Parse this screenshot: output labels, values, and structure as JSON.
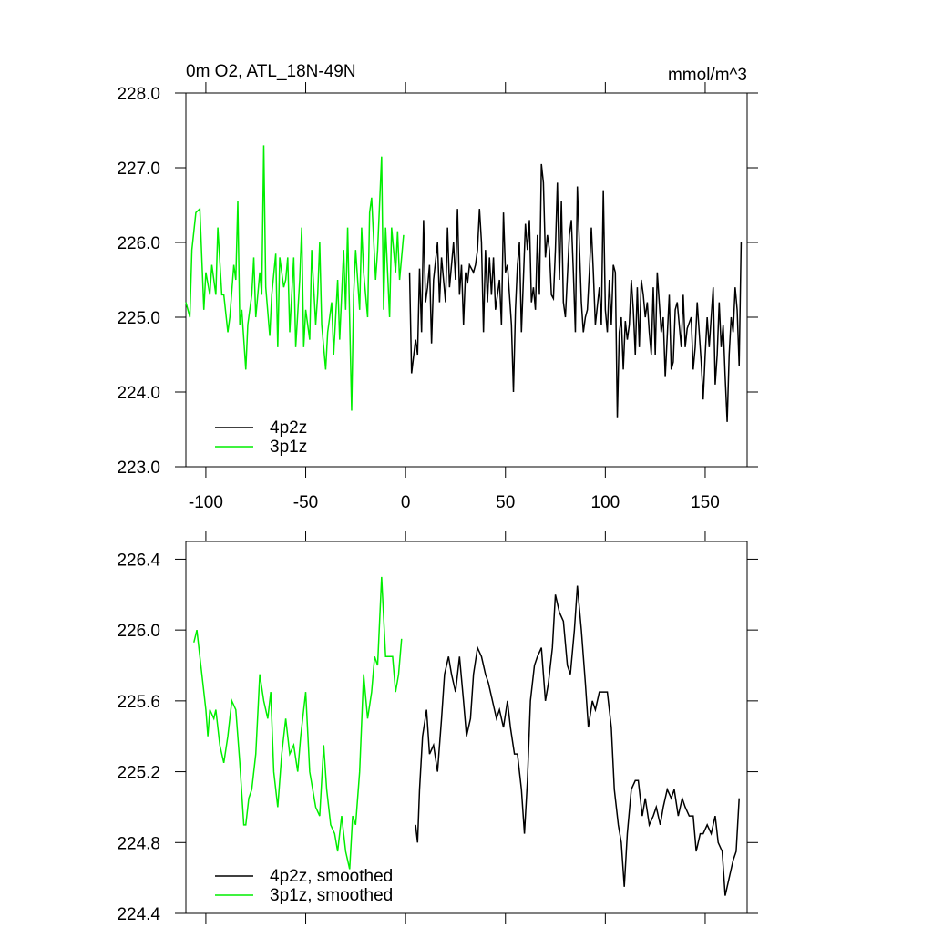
{
  "chart_data": [
    {
      "type": "line",
      "title": "0m O2, ATL_18N-49N",
      "units": "mmol/m^3",
      "xlim": [
        -110,
        171
      ],
      "xticks": [
        -100,
        -50,
        0,
        50,
        100,
        150
      ],
      "show_xtick_labels": true,
      "ylim": [
        223,
        228
      ],
      "yticks": [
        {
          "value": 223,
          "label": "223.0"
        },
        {
          "value": 224,
          "label": "224.0"
        },
        {
          "value": 225,
          "label": "225.0"
        },
        {
          "value": 226,
          "label": "226.0"
        },
        {
          "value": 227,
          "label": "227.0"
        },
        {
          "value": 228,
          "label": "228.0"
        }
      ],
      "legend": "lower left",
      "series": [
        {
          "name": "4p2z",
          "color": "#000000",
          "x": [
            2,
            3,
            5,
            6,
            7,
            8,
            9,
            10,
            11,
            12,
            13,
            14,
            16,
            17,
            18,
            20,
            21,
            22,
            24,
            25,
            26,
            27,
            28,
            29,
            30,
            31,
            32,
            34,
            35,
            36,
            37,
            38,
            39,
            40,
            41,
            42,
            43,
            44,
            45,
            47,
            48,
            49,
            50,
            51,
            53,
            54,
            55,
            56,
            57,
            58,
            60,
            61,
            62,
            63,
            64,
            65,
            66,
            67,
            68,
            69,
            70,
            71,
            72,
            73,
            74,
            75,
            76,
            77,
            78,
            79,
            80,
            82,
            83,
            84,
            85,
            86,
            88,
            89,
            90,
            91,
            92,
            93,
            94,
            95,
            97,
            98,
            99,
            100,
            101,
            102,
            103,
            104,
            105,
            106,
            107,
            108,
            109,
            110,
            111,
            112,
            113,
            114,
            115,
            116,
            117,
            118,
            119,
            120,
            121,
            122,
            123,
            124,
            125,
            126,
            128,
            129,
            130,
            132,
            133,
            134,
            135,
            136,
            138,
            139,
            140,
            141,
            143,
            144,
            145,
            146,
            148,
            149,
            150,
            151,
            152,
            154,
            155,
            156,
            157,
            158,
            159,
            160,
            161,
            162,
            163,
            164,
            165,
            166,
            167,
            168
          ],
          "values": [
            225.6,
            224.25,
            224.7,
            224.5,
            225.65,
            224.8,
            226.3,
            225.2,
            225.4,
            225.7,
            224.65,
            225.5,
            226.0,
            225.2,
            225.8,
            225.2,
            226.2,
            225.4,
            226.0,
            225.5,
            226.45,
            225.3,
            225.7,
            224.9,
            225.6,
            225.45,
            225.7,
            225.6,
            225.7,
            225.9,
            226.45,
            226.0,
            224.8,
            225.9,
            225.2,
            225.8,
            225.3,
            225.8,
            225.1,
            225.5,
            224.9,
            226.4,
            225.6,
            225.7,
            224.9,
            224.0,
            225.1,
            225.7,
            226.0,
            224.8,
            226.25,
            225.9,
            226.3,
            225.2,
            225.4,
            225.1,
            226.1,
            225.3,
            227.05,
            226.8,
            225.8,
            226.1,
            225.9,
            225.3,
            225.25,
            225.9,
            226.8,
            225.5,
            226.55,
            225.2,
            225.0,
            226.1,
            226.3,
            225.6,
            224.8,
            226.75,
            225.2,
            224.8,
            225.0,
            225.1,
            225.6,
            226.2,
            225.6,
            224.9,
            225.4,
            224.9,
            226.7,
            225.1,
            224.8,
            225.5,
            224.9,
            225.7,
            225.6,
            223.65,
            224.8,
            225.0,
            224.3,
            224.95,
            224.7,
            224.9,
            225.5,
            225.1,
            224.5,
            225.4,
            224.6,
            225.5,
            225.3,
            225.0,
            225.2,
            224.8,
            224.5,
            225.4,
            224.5,
            225.6,
            224.8,
            225.0,
            224.2,
            225.3,
            224.3,
            224.4,
            225.1,
            225.2,
            224.6,
            225.3,
            224.6,
            224.85,
            225.0,
            224.3,
            224.6,
            225.2,
            224.4,
            223.9,
            224.5,
            225.0,
            224.6,
            225.4,
            224.1,
            224.5,
            225.2,
            224.6,
            224.9,
            224.2,
            223.6,
            224.5,
            225.0,
            224.8,
            225.4,
            225.1,
            224.35,
            226.0
          ]
        },
        {
          "name": "3p1z",
          "color": "#00ee00",
          "x": [
            -110,
            -108,
            -107,
            -105,
            -103,
            -101,
            -100,
            -98,
            -97,
            -95,
            -94,
            -92,
            -91,
            -89,
            -88,
            -86,
            -85,
            -84,
            -83,
            -82,
            -80,
            -79,
            -77,
            -76,
            -75,
            -73,
            -72,
            -71,
            -70,
            -68,
            -67,
            -65,
            -64,
            -63,
            -61,
            -60,
            -59,
            -58,
            -56,
            -55,
            -53,
            -52,
            -51,
            -50,
            -48,
            -47,
            -45,
            -44,
            -43,
            -42,
            -40,
            -39,
            -37,
            -36,
            -34,
            -33,
            -31,
            -30,
            -29,
            -27,
            -26,
            -25,
            -23,
            -22,
            -21,
            -19,
            -18,
            -17,
            -15,
            -14,
            -12,
            -11,
            -10,
            -8,
            -7,
            -5,
            -4,
            -3,
            -1
          ],
          "values": [
            225.2,
            225.0,
            225.9,
            226.4,
            226.45,
            225.1,
            225.6,
            225.3,
            225.7,
            225.3,
            226.2,
            225.3,
            225.3,
            224.8,
            225.0,
            225.7,
            225.5,
            226.55,
            224.9,
            225.1,
            224.3,
            224.9,
            225.3,
            225.8,
            225.0,
            225.6,
            225.3,
            227.3,
            225.4,
            224.75,
            225.3,
            225.85,
            224.6,
            225.8,
            225.4,
            225.5,
            225.8,
            224.8,
            225.8,
            224.6,
            225.5,
            226.2,
            224.6,
            225.1,
            224.7,
            225.9,
            224.9,
            225.3,
            226.0,
            224.9,
            224.3,
            224.8,
            225.2,
            224.5,
            225.5,
            224.7,
            225.9,
            225.1,
            226.2,
            223.75,
            225.3,
            225.9,
            225.1,
            226.2,
            225.6,
            225.0,
            226.4,
            226.6,
            225.5,
            225.9,
            227.15,
            225.1,
            226.2,
            225.0,
            226.2,
            225.6,
            226.15,
            225.5,
            226.1
          ]
        }
      ]
    },
    {
      "type": "line",
      "xlim": [
        -110,
        171
      ],
      "xticks": [
        -100,
        -50,
        0,
        50,
        100,
        150
      ],
      "show_xtick_labels": false,
      "ylim": [
        224.4,
        226.5
      ],
      "yticks": [
        224.4,
        224.8,
        225.2,
        225.6,
        {
          "value": 226,
          "label": "226.0"
        },
        226.4
      ],
      "legend": "lower left",
      "series": [
        {
          "name": "4p2z, smoothed",
          "color": "#000000",
          "x": [
            5,
            6,
            7,
            8.5,
            10.5,
            12,
            14,
            16,
            18,
            19.5,
            21.5,
            23,
            25,
            27,
            29,
            30.5,
            32.5,
            34,
            36,
            38,
            40,
            41.5,
            43.5,
            45.5,
            47,
            49,
            51,
            52.5,
            54.5,
            56,
            58,
            59.5,
            61,
            62.5,
            64.5,
            66,
            68,
            70,
            71.5,
            73.5,
            75,
            77,
            79,
            81,
            82.5,
            84.5,
            86,
            88,
            90,
            91.5,
            93.5,
            95,
            97,
            99,
            101,
            103,
            104.5,
            106.5,
            108,
            109.5,
            111,
            113,
            115,
            116.5,
            118.5,
            120,
            122,
            124,
            125.5,
            127.5,
            129,
            131,
            133,
            134.5,
            136.5,
            138.5,
            140,
            142,
            144,
            145.5,
            147.5,
            149,
            151,
            153,
            155,
            156.5,
            158.5,
            160,
            162,
            164,
            165.5,
            167
          ],
          "values": [
            224.9,
            224.8,
            225.1,
            225.4,
            225.55,
            225.3,
            225.35,
            225.2,
            225.5,
            225.75,
            225.85,
            225.75,
            225.65,
            225.85,
            225.6,
            225.4,
            225.5,
            225.75,
            225.9,
            225.85,
            225.75,
            225.7,
            225.6,
            225.5,
            225.55,
            225.45,
            225.6,
            225.45,
            225.3,
            225.3,
            225.1,
            224.85,
            225.15,
            225.6,
            225.8,
            225.85,
            225.9,
            225.6,
            225.7,
            225.9,
            226.2,
            226.1,
            226.05,
            225.8,
            225.75,
            226.0,
            226.25,
            226.0,
            225.7,
            225.45,
            225.6,
            225.55,
            225.65,
            225.65,
            225.65,
            225.45,
            225.1,
            224.9,
            224.8,
            224.55,
            224.85,
            225.1,
            225.15,
            225.15,
            224.95,
            225.05,
            224.9,
            224.95,
            225.0,
            224.9,
            225.0,
            225.1,
            225.05,
            225.1,
            224.95,
            225.05,
            225.0,
            224.95,
            224.95,
            224.75,
            224.85,
            224.85,
            224.9,
            224.85,
            224.95,
            224.8,
            224.75,
            224.5,
            224.6,
            224.7,
            224.75,
            225.05
          ]
        },
        {
          "name": "3p1z, smoothed",
          "color": "#00ee00",
          "x": [
            -106,
            -104.5,
            -102,
            -100,
            -99,
            -98,
            -96,
            -95,
            -93,
            -91,
            -89,
            -87,
            -85,
            -83,
            -81,
            -80,
            -78.5,
            -77,
            -75,
            -73,
            -71,
            -69,
            -67.5,
            -66,
            -64,
            -62,
            -60,
            -58,
            -56,
            -54,
            -52.5,
            -50,
            -48,
            -46.5,
            -45,
            -43,
            -41,
            -39.5,
            -37.5,
            -35.5,
            -34,
            -32,
            -30,
            -28,
            -26.5,
            -25,
            -23,
            -21,
            -19,
            -17,
            -15.5,
            -14,
            -12,
            -10,
            -8,
            -6.5,
            -5,
            -3.5,
            -2
          ],
          "values": [
            225.93,
            226.0,
            225.75,
            225.55,
            225.4,
            225.55,
            225.5,
            225.55,
            225.35,
            225.25,
            225.4,
            225.6,
            225.55,
            225.25,
            224.9,
            224.9,
            225.05,
            225.1,
            225.3,
            225.75,
            225.6,
            225.5,
            225.65,
            225.2,
            225.0,
            225.3,
            225.5,
            225.3,
            225.35,
            225.2,
            225.4,
            225.65,
            225.2,
            225.1,
            225.0,
            224.95,
            225.35,
            225.1,
            224.9,
            224.85,
            224.75,
            224.95,
            224.75,
            224.65,
            224.95,
            224.9,
            225.2,
            225.75,
            225.5,
            225.65,
            225.85,
            225.8,
            226.3,
            225.85,
            225.85,
            225.85,
            225.65,
            225.75,
            225.95
          ]
        }
      ]
    }
  ]
}
